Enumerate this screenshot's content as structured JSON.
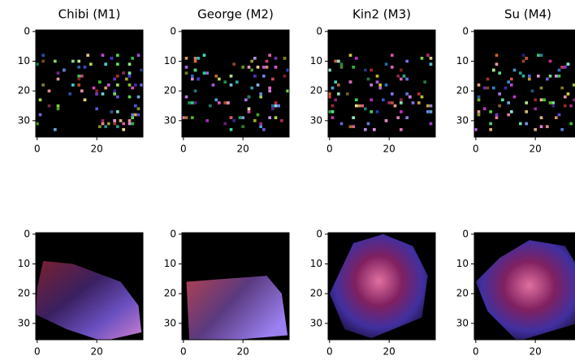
{
  "chart_data": [
    {
      "type": "image",
      "title": "Chibi (M1)",
      "xlim": [
        -0.5,
        35.5
      ],
      "ylim": [
        35.5,
        -0.5
      ],
      "xticks": [
        0,
        20
      ],
      "yticks": [
        0,
        10,
        20,
        30
      ]
    },
    {
      "type": "image",
      "title": "George (M2)",
      "xlim": [
        -0.5,
        35.5
      ],
      "ylim": [
        35.5,
        -0.5
      ],
      "xticks": [
        0,
        20
      ],
      "yticks": [
        0,
        10,
        20,
        30
      ]
    },
    {
      "type": "image",
      "title": "Kin2 (M3)",
      "xlim": [
        -0.5,
        35.5
      ],
      "ylim": [
        35.5,
        -0.5
      ],
      "xticks": [
        0,
        20
      ],
      "yticks": [
        0,
        10,
        20,
        30
      ]
    },
    {
      "type": "image",
      "title": "Su (M4)",
      "xlim": [
        -0.5,
        35.5
      ],
      "ylim": [
        35.5,
        -0.5
      ],
      "xticks": [
        0,
        20
      ],
      "yticks": [
        0,
        10,
        20,
        30
      ]
    },
    {
      "type": "image",
      "xlim": [
        -0.5,
        35.5
      ],
      "ylim": [
        35.5,
        -0.5
      ],
      "xticks": [
        0,
        20
      ],
      "yticks": [
        0,
        10,
        20,
        30
      ]
    },
    {
      "type": "image",
      "xlim": [
        -0.5,
        35.5
      ],
      "ylim": [
        35.5,
        -0.5
      ],
      "xticks": [
        0,
        20
      ],
      "yticks": [
        0,
        10,
        20,
        30
      ]
    },
    {
      "type": "image",
      "xlim": [
        -0.5,
        35.5
      ],
      "ylim": [
        35.5,
        -0.5
      ],
      "xticks": [
        0,
        20
      ],
      "yticks": [
        0,
        10,
        20,
        30
      ]
    },
    {
      "type": "image",
      "xlim": [
        -0.5,
        35.5
      ],
      "ylim": [
        35.5,
        -0.5
      ],
      "xticks": [
        0,
        20
      ],
      "yticks": [
        0,
        10,
        20,
        30
      ]
    }
  ]
}
